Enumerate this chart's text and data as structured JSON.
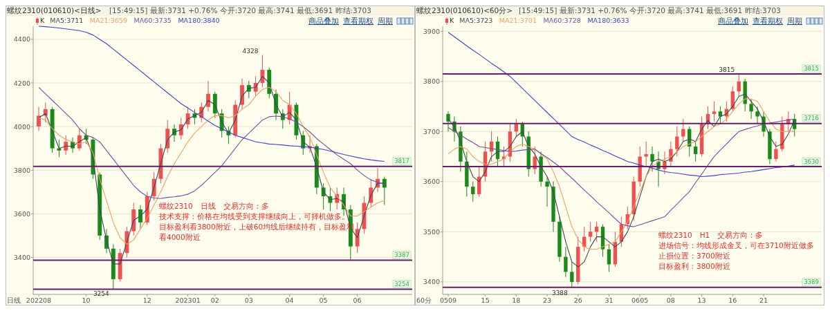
{
  "chart_data": [
    {
      "type": "candlestick",
      "title": "螺纹2310(010610)<日线>",
      "subtitle": "[15:49:15] 最新:3731 +0.76% 今开:3720 最高:3741 最低:3691 昨结:3703",
      "xlabel": "日线",
      "categories": [
        "202208",
        null,
        null,
        null,
        null,
        null,
        null,
        "10",
        null,
        null,
        null,
        null,
        null,
        null,
        null,
        null,
        "12",
        null,
        null,
        null,
        null,
        null,
        "202301",
        null,
        null,
        null,
        "02",
        null,
        null,
        null,
        null,
        "03",
        null,
        null,
        null,
        null,
        null,
        "04",
        null,
        null,
        null,
        null,
        "05",
        null,
        null,
        null,
        null,
        "06",
        null,
        null,
        null,
        null
      ],
      "series": [
        {
          "name": "K",
          "type": "candlestick",
          "ohlc": [
            [
              4000,
              4090,
              3980,
              4050
            ],
            [
              4050,
              4110,
              4020,
              4080
            ],
            [
              4080,
              4090,
              3880,
              3900
            ],
            [
              3900,
              3940,
              3860,
              3890
            ],
            [
              3890,
              3960,
              3870,
              3930
            ],
            [
              3930,
              3950,
              3880,
              3900
            ],
            [
              3900,
              3990,
              3890,
              3960
            ],
            [
              3960,
              3990,
              3920,
              3940
            ],
            [
              3940,
              3950,
              3760,
              3780
            ],
            [
              3780,
              3790,
              3480,
              3500
            ],
            [
              3500,
              3530,
              3420,
              3440
            ],
            [
              3440,
              3460,
              3254,
              3300
            ],
            [
              3300,
              3440,
              3290,
              3420
            ],
            [
              3420,
              3540,
              3400,
              3520
            ],
            [
              3520,
              3650,
              3500,
              3620
            ],
            [
              3620,
              3640,
              3530,
              3560
            ],
            [
              3560,
              3700,
              3550,
              3680
            ],
            [
              3680,
              3790,
              3660,
              3760
            ],
            [
              3760,
              3920,
              3740,
              3900
            ],
            [
              3900,
              4030,
              3880,
              3990
            ],
            [
              3990,
              4010,
              3930,
              3960
            ],
            [
              3960,
              4040,
              3940,
              4010
            ],
            [
              4010,
              4090,
              3990,
              4060
            ],
            [
              4060,
              4080,
              4010,
              4040
            ],
            [
              4040,
              4110,
              4020,
              4090
            ],
            [
              4090,
              4210,
              4070,
              4150
            ],
            [
              4150,
              4160,
              4040,
              4060
            ],
            [
              4060,
              4080,
              3950,
              3980
            ],
            [
              3980,
              4000,
              3920,
              3960
            ],
            [
              3960,
              4120,
              3950,
              4100
            ],
            [
              4100,
              4220,
              4080,
              4190
            ],
            [
              4190,
              4210,
              4130,
              4160
            ],
            [
              4160,
              4230,
              4140,
              4200
            ],
            [
              4200,
              4328,
              4180,
              4260
            ],
            [
              4260,
              4270,
              4130,
              4150
            ],
            [
              4150,
              4170,
              4030,
              4060
            ],
            [
              4060,
              4080,
              3990,
              4030
            ],
            [
              4030,
              4160,
              4010,
              4100
            ],
            [
              4100,
              4110,
              3940,
              3960
            ],
            [
              3960,
              3980,
              3870,
              3900
            ],
            [
              3900,
              3960,
              3880,
              3910
            ],
            [
              3910,
              3920,
              3690,
              3720
            ],
            [
              3720,
              3740,
              3620,
              3680
            ],
            [
              3680,
              3720,
              3612,
              3650
            ],
            [
              3650,
              3720,
              3620,
              3690
            ],
            [
              3690,
              3720,
              3590,
              3620
            ],
            [
              3620,
              3640,
              3390,
              3450
            ],
            [
              3450,
              3560,
              3420,
              3530
            ],
            [
              3530,
              3680,
              3510,
              3650
            ],
            [
              3650,
              3760,
              3630,
              3720
            ],
            [
              3720,
              3810,
              3700,
              3760
            ],
            [
              3760,
              3770,
              3640,
              3720
            ]
          ]
        },
        {
          "name": "MA5:3711",
          "type": "line",
          "color": "#3a4a5a",
          "values": [
            4040,
            4060,
            3980,
            3900,
            3910,
            3910,
            3930,
            3950,
            3860,
            3620,
            3480,
            3370,
            3370,
            3470,
            3570,
            3590,
            3620,
            3720,
            3830,
            3940,
            3975,
            3985,
            4035,
            4050,
            4065,
            4120,
            4100,
            4020,
            3970,
            4030,
            4140,
            4175,
            4180,
            4230,
            4200,
            4100,
            4045,
            4065,
            4030,
            3930,
            3905,
            3815,
            3700,
            3665,
            3670,
            3655,
            3535,
            3490,
            3590,
            3685,
            3740,
            3740
          ]
        },
        {
          "name": "MA21:3659",
          "type": "line",
          "color": "#f0a060",
          "values": [
            4040,
            4030,
            3990,
            3960,
            3940,
            3930,
            3920,
            3930,
            3880,
            3760,
            3660,
            3560,
            3490,
            3460,
            3480,
            3530,
            3580,
            3640,
            3700,
            3770,
            3830,
            3880,
            3930,
            3970,
            4000,
            4030,
            4050,
            4050,
            4040,
            4050,
            4080,
            4100,
            4140,
            4170,
            4180,
            4160,
            4120,
            4100,
            4060,
            4000,
            3950,
            3870,
            3790,
            3720,
            3680,
            3640,
            3590,
            3590,
            3610,
            3630,
            3650,
            3660
          ]
        },
        {
          "name": "MA60:3735",
          "type": "line",
          "color": "#7050a0",
          "values": [
            4180,
            4150,
            4120,
            4090,
            4060,
            4030,
            3990,
            3960,
            3950,
            3930,
            3890,
            3850,
            3810,
            3770,
            3730,
            3700,
            3680,
            3672,
            3670,
            3675,
            3678,
            3682,
            3690,
            3705,
            3730,
            3760,
            3790,
            3820,
            3860,
            3900,
            3940,
            3970,
            4000,
            4030,
            4045,
            4048,
            4045,
            4035,
            4020,
            4000,
            3975,
            3945,
            3920,
            3895,
            3870,
            3850,
            3830,
            3800,
            3775,
            3755,
            3745,
            3735
          ]
        },
        {
          "name": "MA180:3840",
          "type": "line",
          "color": "#4040c8",
          "values": [
            4460,
            4458,
            4455,
            4452,
            4448,
            4444,
            4440,
            4432,
            4420,
            4400,
            4380,
            4355,
            4330,
            4305,
            4280,
            4255,
            4230,
            4205,
            4180,
            4155,
            4130,
            4105,
            4085,
            4065,
            4045,
            4025,
            4005,
            3990,
            3975,
            3960,
            3950,
            3940,
            3930,
            3925,
            3920,
            3918,
            3915,
            3912,
            3910,
            3908,
            3905,
            3900,
            3895,
            3888,
            3880,
            3872,
            3865,
            3858,
            3852,
            3847,
            3843,
            3840
          ]
        }
      ],
      "ylim": [
        3230,
        4460
      ],
      "yticks": [
        3400,
        3600,
        3800,
        4000,
        4200,
        4400
      ],
      "grid": "y",
      "legend": "top left",
      "ref_lines": [
        {
          "axis": "y",
          "value": 3817,
          "label": "3817",
          "color": "#6a1b6a"
        },
        {
          "axis": "y",
          "value": 3387,
          "label": "3387",
          "color": "#6a1b6a"
        },
        {
          "axis": "y",
          "value": 3254,
          "label": "3254",
          "color": "#6a1b6a"
        }
      ],
      "annotations": [
        "商品叠加",
        "查看期权",
        "周期",
        "螺纹2310　日线　交易方向：多",
        "技术支撑：价格在均线受到支撑继续向上，可择机做多。",
        "目标盈利看3800附近，上破60均线后继续持有，目标盈利",
        "看4000附近",
        "4328",
        "3254"
      ]
    },
    {
      "type": "candlestick",
      "title": "螺纹2310(010610)<60分>",
      "subtitle": "[15:49:15] 最新:3731 +0.76% 今开:3720 最高:3741 最低:3691 昨结:3703",
      "xlabel": "60分",
      "categories": [
        "0509",
        null,
        null,
        null,
        null,
        null,
        "15",
        null,
        null,
        null,
        null,
        "18",
        null,
        null,
        null,
        null,
        "23",
        null,
        null,
        null,
        null,
        "26",
        null,
        null,
        null,
        null,
        "31",
        null,
        null,
        null,
        null,
        "0605",
        null,
        null,
        null,
        null,
        "08",
        null,
        null,
        null,
        null,
        "13",
        null,
        null,
        null,
        null,
        "16",
        null,
        null,
        null,
        null,
        "21",
        null,
        null,
        null,
        null,
        null
      ],
      "series": [
        {
          "name": "K",
          "type": "candlestick",
          "ohlc": [
            [
              3735,
              3740,
              3700,
              3720
            ],
            [
              3720,
              3730,
              3680,
              3700
            ],
            [
              3700,
              3710,
              3620,
              3640
            ],
            [
              3640,
              3660,
              3570,
              3590
            ],
            [
              3590,
              3600,
              3560,
              3575
            ],
            [
              3575,
              3630,
              3570,
              3610
            ],
            [
              3610,
              3680,
              3600,
              3660
            ],
            [
              3660,
              3700,
              3640,
              3680
            ],
            [
              3680,
              3690,
              3630,
              3645
            ],
            [
              3645,
              3670,
              3630,
              3650
            ],
            [
              3650,
              3715,
              3640,
              3700
            ],
            [
              3700,
              3725,
              3690,
              3715
            ],
            [
              3715,
              3720,
              3670,
              3690
            ],
            [
              3690,
              3700,
              3610,
              3625
            ],
            [
              3625,
              3670,
              3615,
              3650
            ],
            [
              3650,
              3660,
              3590,
              3600
            ],
            [
              3600,
              3610,
              3550,
              3590
            ],
            [
              3590,
              3600,
              3500,
              3520
            ],
            [
              3520,
              3530,
              3440,
              3450
            ],
            [
              3450,
              3470,
              3410,
              3420
            ],
            [
              3420,
              3440,
              3388,
              3400
            ],
            [
              3400,
              3490,
              3395,
              3470
            ],
            [
              3470,
              3510,
              3460,
              3490
            ],
            [
              3490,
              3520,
              3480,
              3500
            ],
            [
              3500,
              3520,
              3480,
              3510
            ],
            [
              3510,
              3515,
              3450,
              3465
            ],
            [
              3465,
              3475,
              3420,
              3435
            ],
            [
              3435,
              3500,
              3430,
              3480
            ],
            [
              3480,
              3530,
              3470,
              3515
            ],
            [
              3515,
              3550,
              3505,
              3535
            ],
            [
              3535,
              3610,
              3522,
              3600
            ],
            [
              3600,
              3670,
              3590,
              3650
            ],
            [
              3650,
              3680,
              3630,
              3655
            ],
            [
              3655,
              3670,
              3620,
              3640
            ],
            [
              3640,
              3660,
              3590,
              3625
            ],
            [
              3625,
              3660,
              3615,
              3640
            ],
            [
              3640,
              3680,
              3630,
              3665
            ],
            [
              3665,
              3710,
              3650,
              3690
            ],
            [
              3690,
              3725,
              3680,
              3705
            ],
            [
              3705,
              3710,
              3650,
              3670
            ],
            [
              3670,
              3680,
              3640,
              3655
            ],
            [
              3655,
              3730,
              3650,
              3715
            ],
            [
              3715,
              3750,
              3705,
              3735
            ],
            [
              3735,
              3760,
              3720,
              3740
            ],
            [
              3740,
              3750,
              3715,
              3730
            ],
            [
              3730,
              3760,
              3720,
              3745
            ],
            [
              3745,
              3790,
              3740,
              3780
            ],
            [
              3780,
              3815,
              3770,
              3800
            ],
            [
              3800,
              3805,
              3740,
              3755
            ],
            [
              3755,
              3765,
              3725,
              3740
            ],
            [
              3740,
              3750,
              3715,
              3730
            ],
            [
              3730,
              3740,
              3690,
              3700
            ],
            [
              3700,
              3705,
              3635,
              3645
            ],
            [
              3645,
              3680,
              3640,
              3665
            ],
            [
              3665,
              3730,
              3660,
              3715
            ],
            [
              3715,
              3740,
              3700,
              3725
            ],
            [
              3725,
              3735,
              3690,
              3705
            ]
          ]
        },
        {
          "name": "MA5:3723",
          "type": "line",
          "color": "#3a4a5a",
          "values": [
            3725,
            3710,
            3680,
            3640,
            3610,
            3600,
            3620,
            3650,
            3660,
            3660,
            3670,
            3690,
            3700,
            3670,
            3655,
            3630,
            3610,
            3580,
            3530,
            3480,
            3440,
            3430,
            3440,
            3470,
            3490,
            3490,
            3480,
            3470,
            3480,
            3500,
            3530,
            3570,
            3610,
            3640,
            3645,
            3640,
            3645,
            3660,
            3680,
            3685,
            3680,
            3705,
            3722,
            3710,
            3730,
            3735,
            3750,
            3770,
            3775,
            3760,
            3745,
            3720,
            3690,
            3670,
            3675,
            3695,
            3723
          ]
        },
        {
          "name": "MA21:3701",
          "type": "line",
          "color": "#f0a060",
          "values": [
            3655,
            3665,
            3670,
            3665,
            3650,
            3640,
            3635,
            3635,
            3640,
            3645,
            3660,
            3670,
            3675,
            3670,
            3665,
            3655,
            3645,
            3620,
            3590,
            3550,
            3510,
            3485,
            3470,
            3465,
            3465,
            3470,
            3475,
            3480,
            3500,
            3520,
            3550,
            3580,
            3610,
            3630,
            3640,
            3645,
            3650,
            3660,
            3670,
            3675,
            3680,
            3690,
            3700,
            3710,
            3715,
            3725,
            3740,
            3755,
            3765,
            3765,
            3760,
            3740,
            3720,
            3705,
            3700,
            3700,
            3701
          ]
        },
        {
          "name": "MA60:3728",
          "type": "line",
          "color": "#7050a0",
          "values": [
            3708,
            3700,
            3693,
            3685,
            3678,
            3670,
            3668,
            3666,
            3664,
            3662,
            3660,
            3661,
            3663,
            3664,
            3665,
            3656,
            3648,
            3639,
            3630,
            3618,
            3607,
            3595,
            3583,
            3572,
            3560,
            3549,
            3538,
            3526,
            3515,
            3512,
            3510,
            3514,
            3518,
            3522,
            3526,
            3530,
            3543,
            3555,
            3568,
            3580,
            3598,
            3615,
            3633,
            3650,
            3663,
            3675,
            3688,
            3700,
            3704,
            3708,
            3711,
            3715,
            3717,
            3719,
            3721,
            3723,
            3725
          ]
        },
        {
          "name": "MA180:3633",
          "type": "line",
          "color": "#4040c8",
          "values": [
            3898,
            3889,
            3880,
            3871,
            3862,
            3854,
            3845,
            3836,
            3828,
            3819,
            3810,
            3798,
            3786,
            3774,
            3762,
            3750,
            3738,
            3726,
            3714,
            3702,
            3690,
            3684,
            3679,
            3673,
            3668,
            3662,
            3657,
            3651,
            3646,
            3640,
            3637,
            3633,
            3630,
            3627,
            3623,
            3620,
            3618,
            3617,
            3615,
            3613,
            3612,
            3610,
            3611,
            3612,
            3614,
            3615,
            3616,
            3617,
            3619,
            3620,
            3622,
            3624,
            3626,
            3628,
            3629,
            3631,
            3633
          ]
        }
      ],
      "ylim": [
        3375,
        3910
      ],
      "yticks": [
        3400,
        3500,
        3600,
        3700,
        3800,
        3900
      ],
      "grid": "y",
      "legend": "top left",
      "ref_lines": [
        {
          "axis": "y",
          "value": 3815,
          "label": "3815",
          "color": "#6a1b6a"
        },
        {
          "axis": "y",
          "value": 3716,
          "label": "3716",
          "color": "#6a1b6a"
        },
        {
          "axis": "y",
          "value": 3630,
          "label": "3630",
          "color": "#6a1b6a"
        },
        {
          "axis": "y",
          "value": 3389,
          "label": "3389",
          "color": "#6a1b6a"
        }
      ],
      "annotations": [
        "商品叠加",
        "查看期权",
        "周期",
        "螺纹2310　H1　交易方向：多",
        "进场信号：均线形成金叉，可在3710附近做多",
        "止损位置：3700附近",
        "目标盈利：3800附近",
        "3815",
        "3388"
      ]
    }
  ]
}
